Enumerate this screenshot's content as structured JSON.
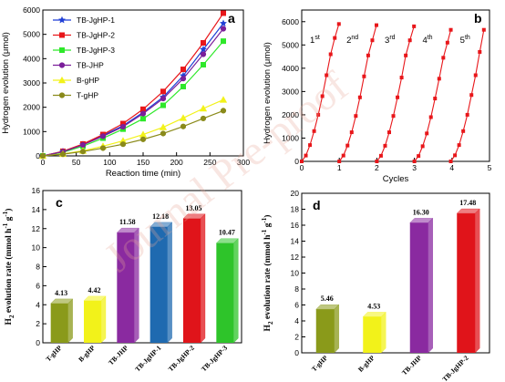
{
  "watermark": "Journal Pre-proof",
  "chart_data": [
    {
      "panel": "a",
      "type": "line",
      "xlabel": "Reaction time (min)",
      "ylabel": "Hydrogen evolution (μmol)",
      "xlim": [
        0,
        300
      ],
      "ylim": [
        0,
        6000
      ],
      "xticks": [
        0,
        50,
        100,
        150,
        200,
        250,
        300
      ],
      "yticks": [
        0,
        1000,
        2000,
        3000,
        4000,
        5000,
        6000
      ],
      "x": [
        0,
        30,
        60,
        90,
        120,
        150,
        180,
        210,
        240,
        270
      ],
      "legend_position": "top-left",
      "series": [
        {
          "name": "TB-JgHP-1",
          "color": "#1f3fd6",
          "marker": "star",
          "values": [
            0,
            180,
            470,
            840,
            1240,
            1790,
            2420,
            3300,
            4380,
            5450
          ]
        },
        {
          "name": "TB-JgHP-2",
          "color": "#e8161a",
          "marker": "square",
          "values": [
            0,
            190,
            490,
            880,
            1330,
            1920,
            2650,
            3560,
            4650,
            5870
          ]
        },
        {
          "name": "TB-JgHP-3",
          "color": "#2ee82a",
          "marker": "square",
          "values": [
            0,
            150,
            400,
            730,
            1100,
            1530,
            2080,
            2850,
            3750,
            4720
          ]
        },
        {
          "name": "TB-JHP",
          "color": "#7a1f9a",
          "marker": "circle",
          "values": [
            0,
            170,
            450,
            810,
            1200,
            1740,
            2360,
            3180,
            4180,
            5230
          ]
        },
        {
          "name": "B-gHP",
          "color": "#f2f21a",
          "marker": "triangle",
          "values": [
            0,
            80,
            210,
            400,
            620,
            880,
            1180,
            1560,
            1950,
            2310
          ]
        },
        {
          "name": "T-gHP",
          "color": "#8a8a1a",
          "marker": "circle",
          "values": [
            0,
            70,
            180,
            320,
            480,
            680,
            920,
            1210,
            1540,
            1860
          ]
        }
      ]
    },
    {
      "panel": "b",
      "type": "line",
      "xlabel": "Cycles",
      "ylabel": "Hydrogen evolution (μmol)",
      "xlim": [
        0,
        5
      ],
      "ylim": [
        0,
        6500
      ],
      "xticks": [
        0,
        1,
        2,
        3,
        4,
        5
      ],
      "yticks": [
        0,
        1000,
        2000,
        3000,
        4000,
        5000,
        6000
      ],
      "color": "#e8161a",
      "cycle_labels": [
        {
          "num": "1",
          "sup": "st"
        },
        {
          "num": "2",
          "sup": "nd"
        },
        {
          "num": "3",
          "sup": "rd"
        },
        {
          "num": "4",
          "sup": "th"
        },
        {
          "num": "5",
          "sup": "th"
        }
      ],
      "cycles": [
        {
          "x": [
            0.0,
            0.11,
            0.22,
            0.33,
            0.44,
            0.55,
            0.66,
            0.77,
            0.88,
            0.99
          ],
          "y": [
            0,
            250,
            700,
            1300,
            2000,
            2800,
            3700,
            4600,
            5300,
            5900
          ]
        },
        {
          "x": [
            1.0,
            1.11,
            1.22,
            1.33,
            1.44,
            1.55,
            1.66,
            1.77,
            1.88,
            1.99
          ],
          "y": [
            0,
            250,
            680,
            1250,
            1950,
            2750,
            3650,
            4550,
            5200,
            5850
          ]
        },
        {
          "x": [
            2.0,
            2.11,
            2.22,
            2.33,
            2.44,
            2.55,
            2.66,
            2.77,
            2.88,
            2.99
          ],
          "y": [
            0,
            240,
            670,
            1250,
            1950,
            2750,
            3600,
            4550,
            5200,
            5800
          ]
        },
        {
          "x": [
            3.0,
            3.11,
            3.22,
            3.33,
            3.44,
            3.55,
            3.66,
            3.77,
            3.88,
            3.97
          ],
          "y": [
            0,
            230,
            650,
            1200,
            1900,
            2700,
            3550,
            4450,
            5100,
            5650
          ]
        },
        {
          "x": [
            3.97,
            4.08,
            4.19,
            4.3,
            4.41,
            4.52,
            4.63,
            4.74,
            4.85
          ],
          "y": [
            0,
            260,
            700,
            1300,
            2000,
            2850,
            3700,
            4700,
            5650
          ]
        }
      ]
    },
    {
      "panel": "c",
      "type": "bar",
      "ylabel_main": "H",
      "ylabel_sub": "2",
      "ylabel_rest": " evolution rate  (mmol h",
      "ylabel_sup1": "-1",
      "ylabel_g": " g",
      "ylabel_sup2": "-1",
      "ylabel_end": ")",
      "ylim": [
        0,
        16
      ],
      "yticks": [
        0,
        2,
        4,
        6,
        8,
        10,
        12,
        14,
        16
      ],
      "categories": [
        "T-gHP",
        "B-gHP",
        "TB-JHP",
        "TB-JgHP-1",
        "TB-JgHP-2",
        "TB-JgHP-3"
      ],
      "values": [
        4.13,
        4.42,
        11.58,
        12.18,
        13.05,
        10.47
      ],
      "labels": [
        "4.13",
        "4.42",
        "11.58",
        "12.18",
        "13.05",
        "10.47"
      ],
      "colors": [
        "#8a9a1a",
        "#f2f21a",
        "#8a2aa0",
        "#1f6ab0",
        "#e0141a",
        "#2ec42a"
      ]
    },
    {
      "panel": "d",
      "type": "bar",
      "ylabel_main": "H",
      "ylabel_sub": "2",
      "ylabel_rest": " evolution rate  (mmol h",
      "ylabel_sup1": "-1",
      "ylabel_g": " g",
      "ylabel_sup2": "-1",
      "ylabel_end": ")",
      "ylim": [
        0,
        20
      ],
      "yticks": [
        0,
        2,
        4,
        6,
        8,
        10,
        12,
        14,
        16,
        18,
        20
      ],
      "categories": [
        "T-gHP",
        "B-gHP",
        "TB-JHP",
        "TB-JgHP-2"
      ],
      "values": [
        5.46,
        4.53,
        16.3,
        17.48
      ],
      "labels": [
        "5.46",
        "4.53",
        "16.30",
        "17.48"
      ],
      "colors": [
        "#8a9a1a",
        "#f2f21a",
        "#8a2aa0",
        "#e0141a"
      ]
    }
  ]
}
